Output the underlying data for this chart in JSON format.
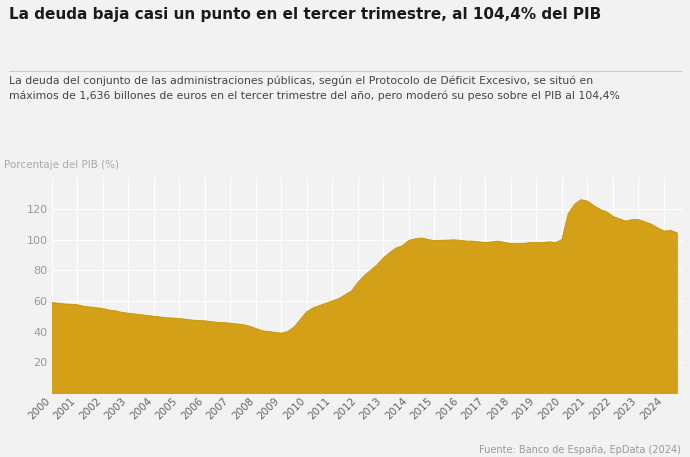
{
  "title": "La deuda baja casi un punto en el tercer trimestre, al 104,4% del PIB",
  "subtitle": "La deuda del conjunto de las administraciones públicas, según el Protocolo de Déficit Excesivo, se situó en\nmáximos de 1,636 billones de euros en el tercer trimestre del año, pero moderó su peso sobre el PIB al 104,4%",
  "ylabel": "Porcentaje del PIB (%)",
  "source": "Fuente: Banco de España, EpData (2024)",
  "fill_color": "#D4A017",
  "line_color": "#C89A10",
  "background_color": "#f2f2f2",
  "xlim_start": 2000.0,
  "xlim_end": 2024.75,
  "ylim": [
    0,
    140
  ],
  "yticks": [
    20,
    40,
    60,
    80,
    100,
    120
  ],
  "quarters": [
    2000.0,
    2000.25,
    2000.5,
    2000.75,
    2001.0,
    2001.25,
    2001.5,
    2001.75,
    2002.0,
    2002.25,
    2002.5,
    2002.75,
    2003.0,
    2003.25,
    2003.5,
    2003.75,
    2004.0,
    2004.25,
    2004.5,
    2004.75,
    2005.0,
    2005.25,
    2005.5,
    2005.75,
    2006.0,
    2006.25,
    2006.5,
    2006.75,
    2007.0,
    2007.25,
    2007.5,
    2007.75,
    2008.0,
    2008.25,
    2008.5,
    2008.75,
    2009.0,
    2009.25,
    2009.5,
    2009.75,
    2010.0,
    2010.25,
    2010.5,
    2010.75,
    2011.0,
    2011.25,
    2011.5,
    2011.75,
    2012.0,
    2012.25,
    2012.5,
    2012.75,
    2013.0,
    2013.25,
    2013.5,
    2013.75,
    2014.0,
    2014.25,
    2014.5,
    2014.75,
    2015.0,
    2015.25,
    2015.5,
    2015.75,
    2016.0,
    2016.25,
    2016.5,
    2016.75,
    2017.0,
    2017.25,
    2017.5,
    2017.75,
    2018.0,
    2018.25,
    2018.5,
    2018.75,
    2019.0,
    2019.25,
    2019.5,
    2019.75,
    2020.0,
    2020.25,
    2020.5,
    2020.75,
    2021.0,
    2021.25,
    2021.5,
    2021.75,
    2022.0,
    2022.25,
    2022.5,
    2022.75,
    2023.0,
    2023.25,
    2023.5,
    2023.75,
    2024.0,
    2024.25,
    2024.5
  ],
  "values": [
    59.0,
    58.5,
    58.0,
    57.8,
    57.5,
    56.5,
    56.0,
    55.5,
    55.0,
    54.0,
    53.5,
    52.5,
    52.0,
    51.5,
    51.0,
    50.5,
    50.0,
    49.5,
    49.0,
    48.8,
    48.5,
    48.0,
    47.5,
    47.2,
    47.0,
    46.5,
    46.0,
    45.8,
    45.5,
    45.0,
    44.5,
    43.5,
    42.0,
    40.5,
    40.0,
    39.5,
    39.0,
    40.0,
    43.0,
    48.0,
    53.0,
    55.5,
    57.0,
    58.5,
    60.0,
    61.5,
    64.0,
    66.5,
    72.0,
    76.5,
    80.0,
    83.5,
    88.0,
    91.5,
    94.5,
    96.0,
    99.5,
    100.5,
    101.0,
    100.0,
    99.3,
    99.5,
    99.6,
    99.8,
    99.5,
    99.0,
    99.0,
    98.5,
    98.0,
    98.5,
    99.0,
    98.0,
    97.5,
    97.5,
    97.5,
    98.0,
    98.0,
    98.0,
    98.5,
    98.0,
    100.0,
    117.0,
    123.0,
    126.0,
    125.0,
    122.0,
    119.5,
    118.0,
    115.0,
    113.5,
    112.0,
    113.0,
    113.0,
    111.5,
    110.0,
    107.5,
    105.5,
    106.0,
    104.4
  ],
  "xtick_years": [
    2000,
    2001,
    2002,
    2003,
    2004,
    2005,
    2006,
    2007,
    2008,
    2009,
    2010,
    2011,
    2012,
    2013,
    2014,
    2015,
    2016,
    2017,
    2018,
    2019,
    2020,
    2021,
    2022,
    2023,
    2024
  ],
  "title_fontsize": 11,
  "subtitle_fontsize": 7.8,
  "ylabel_fontsize": 7.5,
  "source_fontsize": 7,
  "ytick_fontsize": 8,
  "xtick_fontsize": 7.5
}
